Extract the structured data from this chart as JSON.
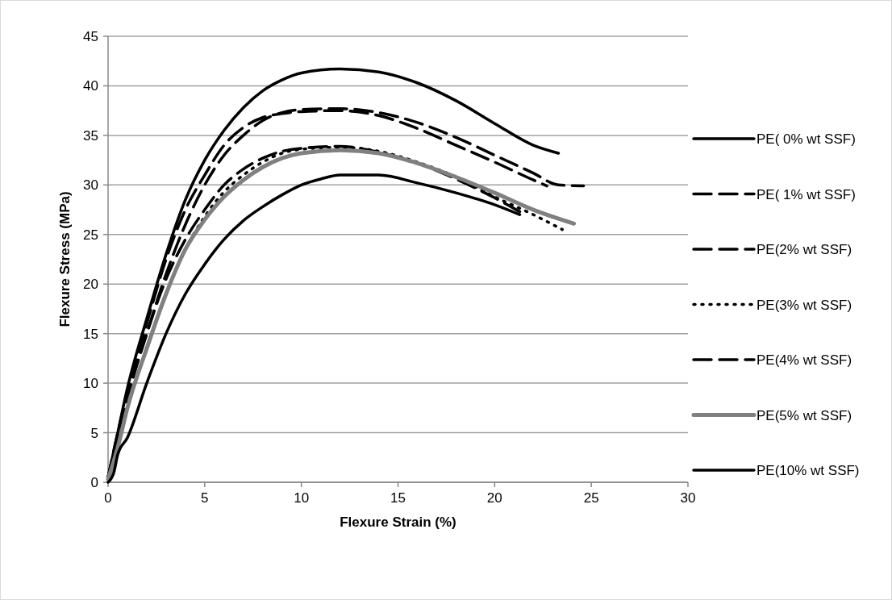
{
  "chart_data": {
    "type": "line",
    "xlabel": "Flexure Strain (%)",
    "ylabel": "Flexure Stress (MPa)",
    "xlim": [
      0,
      30
    ],
    "xticks": [
      0,
      5,
      10,
      15,
      20,
      25,
      30
    ],
    "ylim": [
      0,
      45
    ],
    "yticks": [
      0,
      5,
      10,
      15,
      20,
      25,
      30,
      35,
      40,
      45
    ],
    "grid": "y",
    "legend": "right",
    "marker": "none",
    "series": [
      {
        "name": "PE( 0% wt SSF)",
        "color": "#000000",
        "line_style": "solid",
        "x": [
          0,
          0.5,
          1,
          2,
          3,
          4,
          5,
          6,
          7,
          8,
          9,
          10,
          12,
          14,
          16,
          18,
          20,
          22,
          23.3
        ],
        "values": [
          0.5,
          5,
          9.5,
          16.5,
          23,
          28.5,
          32.5,
          35.5,
          37.8,
          39.5,
          40.6,
          41.3,
          41.7,
          41.4,
          40.3,
          38.5,
          36.2,
          34,
          33.2
        ]
      },
      {
        "name": "PE( 1% wt SSF)",
        "color": "#000000",
        "line_style": "dashed",
        "x": [
          0,
          0.5,
          1,
          2,
          3,
          4,
          5,
          6,
          7,
          8,
          9,
          10,
          12,
          14,
          16,
          18,
          20,
          22,
          23.3,
          24.6
        ],
        "values": [
          0.5,
          4.5,
          8.5,
          15,
          21,
          26,
          30,
          33,
          35,
          36.5,
          37.3,
          37.6,
          37.7,
          37.3,
          36.3,
          34.8,
          33,
          31.2,
          30,
          29.9
        ]
      },
      {
        "name": "PE(2% wt  SSF)",
        "color": "#000000",
        "line_style": "dashed",
        "x": [
          0,
          0.5,
          1,
          2,
          3,
          4,
          5,
          6,
          7,
          8,
          9,
          10,
          12,
          14,
          16,
          18,
          20,
          22,
          22.7
        ],
        "values": [
          0.5,
          5,
          9,
          16,
          22.5,
          27.5,
          31,
          34,
          35.8,
          36.8,
          37.2,
          37.4,
          37.5,
          37,
          35.7,
          34,
          32.3,
          30.5,
          29.9
        ]
      },
      {
        "name": "PE(3% wt  SSF)",
        "color": "#000000",
        "line_style": "dotted",
        "x": [
          0,
          0.5,
          1,
          2,
          3,
          4,
          5,
          6,
          7,
          8,
          9,
          10,
          12,
          14,
          16,
          18,
          20,
          22,
          23.5
        ],
        "values": [
          0.5,
          4,
          7.5,
          13.5,
          19,
          23.5,
          26.8,
          29.3,
          31,
          32.3,
          33.2,
          33.6,
          33.8,
          33.4,
          32.3,
          30.8,
          28.8,
          27,
          25.5
        ]
      },
      {
        "name": "PE(4% wt  SSF)",
        "color": "#000000",
        "line_style": "dashed",
        "x": [
          0,
          0.5,
          1,
          2,
          3,
          4,
          5,
          6,
          7,
          8,
          9,
          10,
          12,
          14,
          16,
          18,
          20,
          21.3
        ],
        "values": [
          0.5,
          4.5,
          8.5,
          15,
          20.5,
          24.5,
          27.5,
          30,
          31.6,
          32.7,
          33.4,
          33.7,
          33.9,
          33.3,
          32.2,
          30.6,
          28.7,
          27.3
        ]
      },
      {
        "name": "PE(5% wt  SSF)",
        "color": "#808080",
        "line_style": "solid",
        "x": [
          0,
          0.5,
          1,
          2,
          3,
          4,
          5,
          6,
          7,
          8,
          9,
          10,
          12,
          14,
          16,
          18,
          20,
          22,
          24.1
        ],
        "values": [
          0.3,
          3.5,
          7.5,
          13.5,
          19,
          23.5,
          26.5,
          28.8,
          30.5,
          31.8,
          32.7,
          33.2,
          33.5,
          33.2,
          32.2,
          30.8,
          29.2,
          27.5,
          26.1
        ]
      },
      {
        "name": "PE(10% wt  SSF)",
        "color": "#000000",
        "line_style": "solid",
        "x": [
          0,
          0.3,
          0.5,
          1,
          2,
          3,
          4,
          5,
          6,
          7,
          8,
          9,
          10,
          11,
          12,
          14,
          16,
          18,
          20,
          21.3
        ],
        "values": [
          0,
          1,
          2.8,
          4.5,
          10,
          15,
          19,
          22,
          24.5,
          26.4,
          27.8,
          29,
          30,
          30.6,
          31,
          31,
          30.2,
          29.2,
          28,
          27
        ]
      }
    ]
  }
}
